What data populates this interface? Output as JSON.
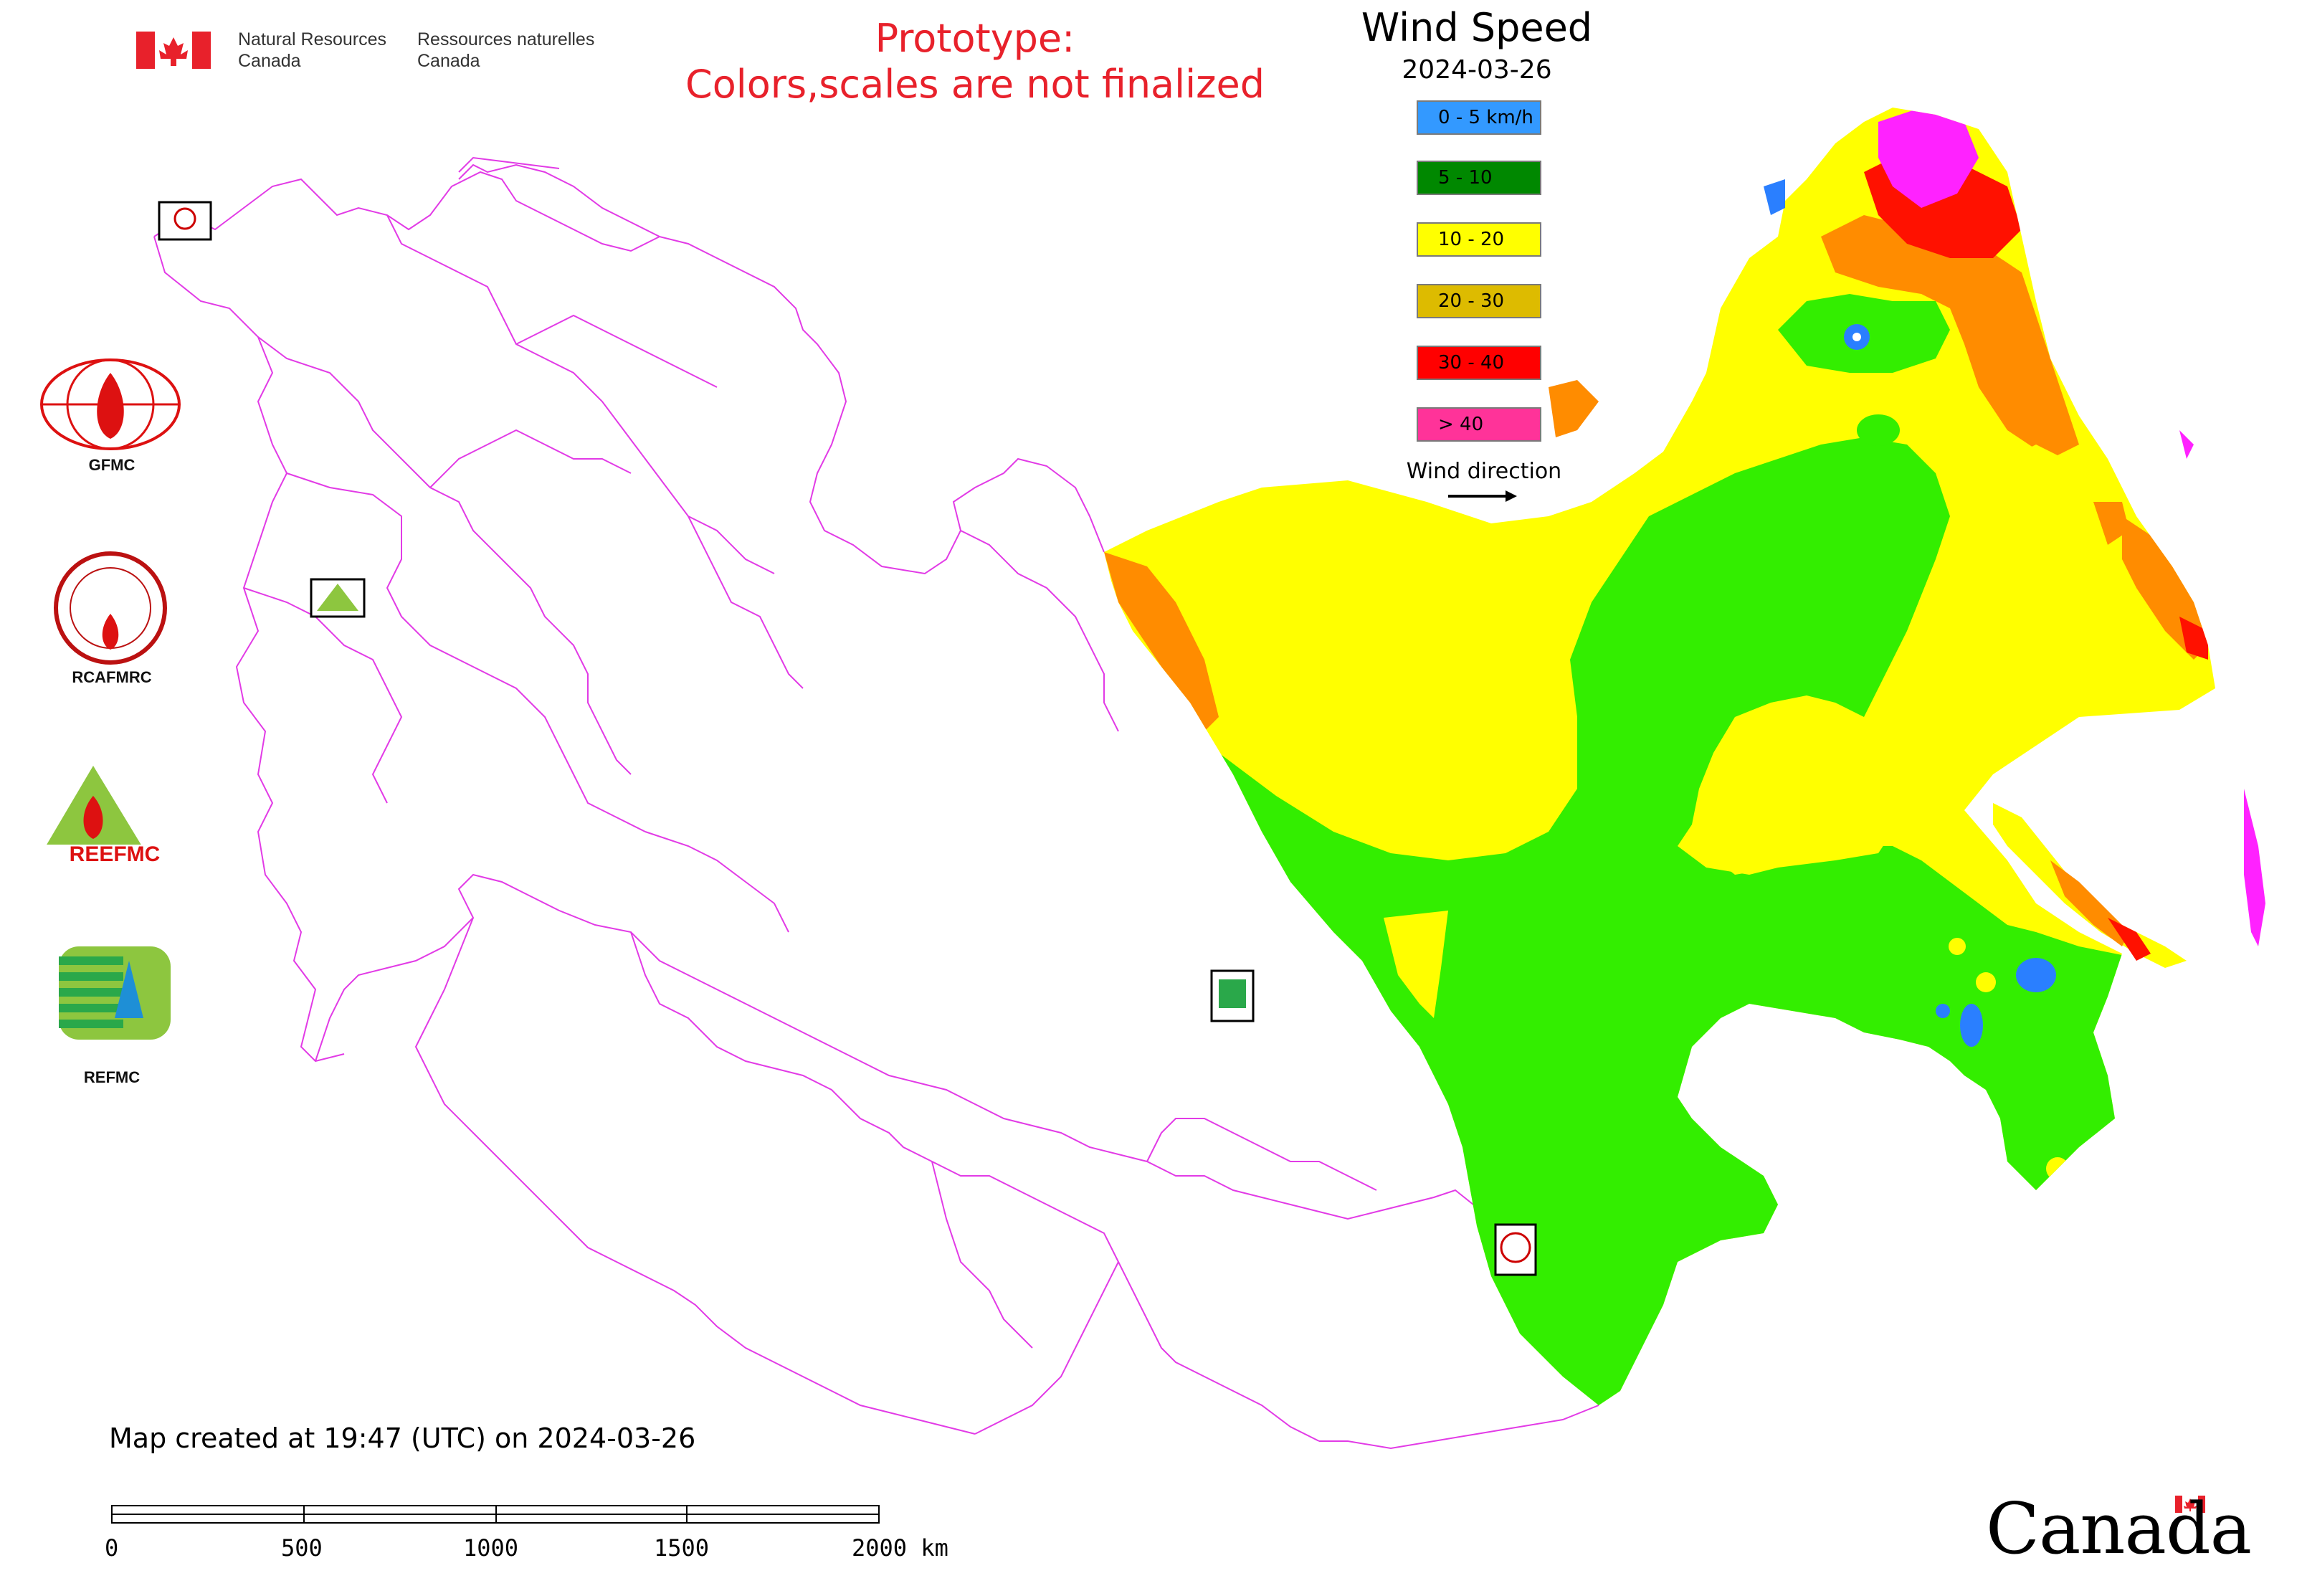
{
  "header": {
    "org_en_line1": "Natural Resources",
    "org_en_line2": "Canada",
    "org_fr_line1": "Ressources naturelles",
    "org_fr_line2": "Canada",
    "prototype_line1": "Prototype:",
    "prototype_line2": "Colors,scales are not finalized"
  },
  "map": {
    "title": "Wind Speed",
    "date": "2024-03-26",
    "created_note": "Map created at 19:47 (UTC) on 2024-03-26",
    "boundary_color": "#e23be6"
  },
  "legend": {
    "items": [
      {
        "label": "0 - 5 km/h",
        "color": "#3399ff"
      },
      {
        "label": "5 - 10",
        "color": "#008800"
      },
      {
        "label": "10 - 20",
        "color": "#ffff00"
      },
      {
        "label": "20 - 30",
        "color": "#ddbb00"
      },
      {
        "label": "30 - 40",
        "color": "#ff0000"
      },
      {
        "label": "> 40",
        "color": "#ff3399"
      }
    ],
    "wind_direction_label": "Wind direction"
  },
  "logos": {
    "gfmc": "GFMC",
    "rcafmrc": "RCAFMRC",
    "reefmc_text": "REEFMC",
    "refmc": "REFMC"
  },
  "scale_bar": {
    "ticks": [
      "0",
      "500",
      "1000",
      "1500",
      "2000 km"
    ]
  },
  "footer": {
    "wordmark": "Canada"
  },
  "icons": [
    "canada-flag-icon",
    "gfmc-logo-icon",
    "rcafmrc-logo-icon",
    "reefmc-logo-icon",
    "refmc-logo-icon",
    "wind-arrow-icon"
  ]
}
